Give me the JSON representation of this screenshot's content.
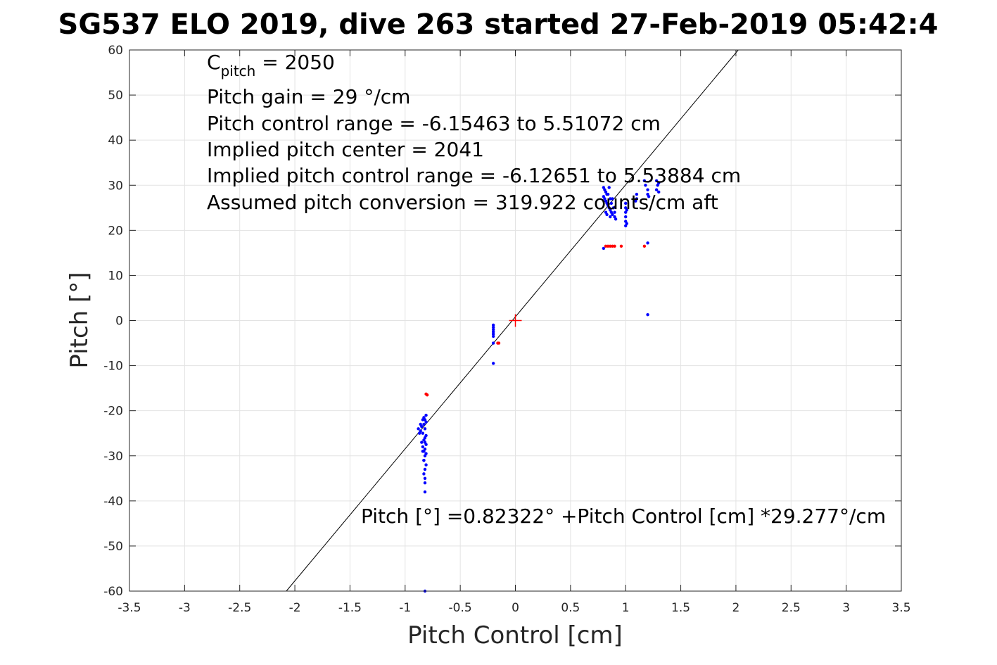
{
  "chart_data": {
    "type": "scatter",
    "title": "SG537 ELO 2019, dive 263 started 27-Feb-2019 05:42:4",
    "xlabel": "Pitch Control [cm]",
    "ylabel": "Pitch [°]",
    "xlim": [
      -3.5,
      3.5
    ],
    "ylim": [
      -60,
      60
    ],
    "xticks": [
      -3.5,
      -3,
      -2.5,
      -2,
      -1.5,
      -1,
      -0.5,
      0,
      0.5,
      1,
      1.5,
      2,
      2.5,
      3,
      3.5
    ],
    "yticks": [
      -60,
      -50,
      -40,
      -30,
      -20,
      -10,
      0,
      10,
      20,
      30,
      40,
      50,
      60
    ],
    "xtick_labels": [
      "-3.5",
      "-3",
      "-2.5",
      "-2",
      "-1.5",
      "-1",
      "-0.5",
      "0",
      "0.5",
      "1",
      "1.5",
      "2",
      "2.5",
      "3",
      "3.5"
    ],
    "ytick_labels": [
      "-60",
      "-50",
      "-40",
      "-30",
      "-20",
      "-10",
      "0",
      "10",
      "20",
      "30",
      "40",
      "50",
      "60"
    ],
    "grid": true,
    "annotations": {
      "c_pitch_label": "C",
      "c_pitch_sub": "pitch",
      "c_pitch_value": " = 2050",
      "lines": [
        "Pitch gain = 29 °/cm",
        "Pitch control range = -6.15463 to 5.51072 cm",
        "Implied pitch center = 2041",
        "Implied pitch control range = -6.12651 to 5.53884 cm",
        "Assumed pitch conversion = 319.922 counts/cm aft"
      ],
      "fit_equation": "Pitch [°] =0.82322° +Pitch Control [cm] *29.277°/cm"
    },
    "fit": {
      "intercept": 0.82322,
      "slope": 29.277,
      "color": "#000000"
    },
    "center_marker": {
      "x": 0,
      "y": 0,
      "color": "#ff0000"
    },
    "series": [
      {
        "color": "#0000ff",
        "points": [
          [
            -0.82,
            -60
          ],
          [
            -0.82,
            -38
          ],
          [
            -0.82,
            -36
          ],
          [
            -0.83,
            -34
          ],
          [
            -0.82,
            -33
          ],
          [
            -0.81,
            -32
          ],
          [
            -0.83,
            -31
          ],
          [
            -0.82,
            -30
          ],
          [
            -0.81,
            -29.5
          ],
          [
            -0.83,
            -29
          ],
          [
            -0.82,
            -28.5
          ],
          [
            -0.84,
            -28
          ],
          [
            -0.81,
            -27.5
          ],
          [
            -0.82,
            -27
          ],
          [
            -0.83,
            -26.5
          ],
          [
            -0.82,
            -26
          ],
          [
            -0.81,
            -25.5
          ],
          [
            -0.84,
            -25
          ],
          [
            -0.86,
            -24.5
          ],
          [
            -0.88,
            -24
          ],
          [
            -0.82,
            -24
          ],
          [
            -0.85,
            -23.5
          ],
          [
            -0.83,
            -23
          ],
          [
            -0.81,
            -22.5
          ],
          [
            -0.82,
            -22
          ],
          [
            -0.83,
            -21.5
          ],
          [
            -0.81,
            -21
          ],
          [
            -0.84,
            -22
          ],
          [
            -0.86,
            -23
          ],
          [
            -0.87,
            -25
          ],
          [
            -0.85,
            -27
          ],
          [
            -0.84,
            -29
          ],
          [
            -0.83,
            -31
          ],
          [
            -0.82,
            -35
          ],
          [
            -0.2,
            -1
          ],
          [
            -0.2,
            -1.5
          ],
          [
            -0.2,
            -2
          ],
          [
            -0.2,
            -2.5
          ],
          [
            -0.2,
            -3
          ],
          [
            -0.2,
            -3.5
          ],
          [
            -0.2,
            -5
          ],
          [
            -0.2,
            -9.5
          ],
          [
            0.8,
            29.5
          ],
          [
            0.81,
            29
          ],
          [
            0.82,
            28.5
          ],
          [
            0.83,
            28
          ],
          [
            0.8,
            27.5
          ],
          [
            0.81,
            27
          ],
          [
            0.82,
            26.5
          ],
          [
            0.83,
            26
          ],
          [
            0.84,
            25.5
          ],
          [
            0.85,
            25
          ],
          [
            0.86,
            24.5
          ],
          [
            0.87,
            24
          ],
          [
            0.88,
            23.5
          ],
          [
            0.85,
            29.5
          ],
          [
            0.84,
            28
          ],
          [
            0.86,
            27
          ],
          [
            0.87,
            26
          ],
          [
            0.88,
            27
          ],
          [
            0.89,
            25
          ],
          [
            0.9,
            24
          ],
          [
            0.9,
            23
          ],
          [
            0.91,
            22.5
          ],
          [
            0.86,
            23
          ],
          [
            0.82,
            24
          ],
          [
            0.83,
            23.5
          ],
          [
            0.8,
            16
          ],
          [
            1.0,
            26
          ],
          [
            1.0,
            25
          ],
          [
            1.0,
            24
          ],
          [
            1.0,
            23
          ],
          [
            1.0,
            22
          ],
          [
            1.01,
            21.5
          ],
          [
            1.0,
            21
          ],
          [
            1.01,
            24.5
          ],
          [
            1.1,
            27
          ],
          [
            1.1,
            28
          ],
          [
            1.09,
            26.5
          ],
          [
            1.17,
            31
          ],
          [
            1.18,
            30
          ],
          [
            1.2,
            29
          ],
          [
            1.2,
            28
          ],
          [
            1.21,
            27.5
          ],
          [
            1.28,
            31
          ],
          [
            1.29,
            30
          ],
          [
            1.28,
            29
          ],
          [
            1.3,
            28.5
          ],
          [
            1.3,
            30.5
          ],
          [
            1.2,
            17.2
          ],
          [
            1.2,
            1.3
          ]
        ]
      },
      {
        "color": "#ff0000",
        "points": [
          [
            -0.8,
            -16.5
          ],
          [
            -0.81,
            -16.3
          ],
          [
            -0.15,
            -5
          ],
          [
            -0.16,
            -5
          ],
          [
            0.82,
            16.5
          ],
          [
            0.84,
            16.5
          ],
          [
            0.86,
            16.5
          ],
          [
            0.88,
            16.5
          ],
          [
            0.9,
            16.5
          ],
          [
            0.96,
            16.5
          ],
          [
            1.17,
            16.5
          ]
        ]
      }
    ]
  }
}
